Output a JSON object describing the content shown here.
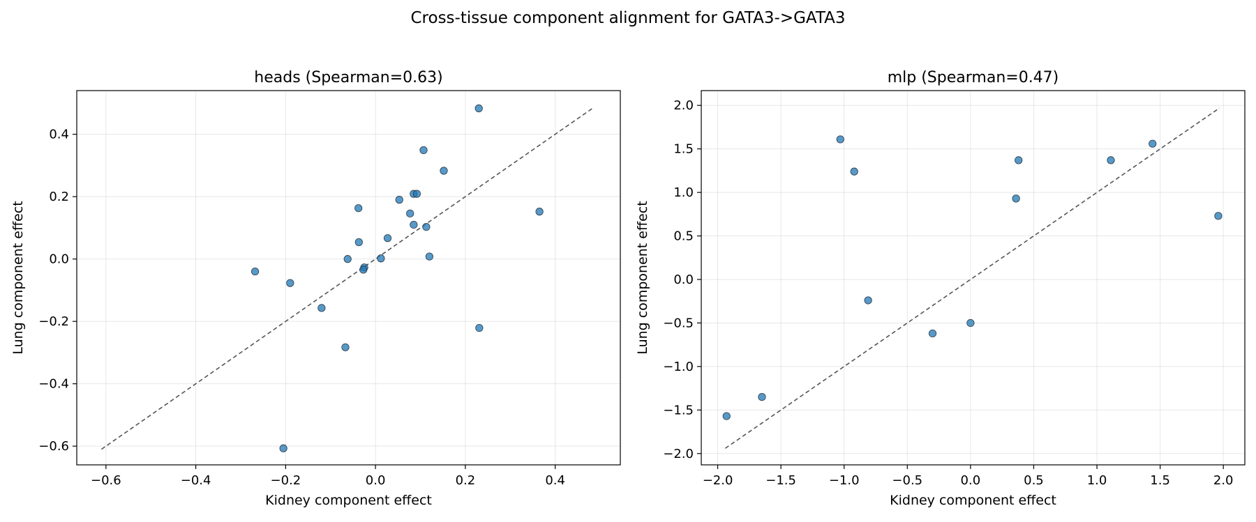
{
  "figure": {
    "suptitle": "Cross-tissue component alignment for GATA3->GATA3"
  },
  "colors": {
    "point_fill": "#1f77b4",
    "point_edge": "#2b3a4a",
    "diagonal": "#555555"
  },
  "chart_data": [
    {
      "type": "scatter",
      "title": "heads (Spearman=0.63)",
      "xlabel": "Kidney component effect",
      "ylabel": "Lung component effect",
      "xlim": [
        -0.665,
        0.545
      ],
      "ylim": [
        -0.66,
        0.54
      ],
      "xticks": [
        -0.6,
        -0.4,
        -0.2,
        0.0,
        0.2,
        0.4
      ],
      "xtick_labels": [
        "−0.6",
        "−0.4",
        "−0.2",
        "0.0",
        "0.2",
        "0.4"
      ],
      "yticks": [
        -0.6,
        -0.4,
        -0.2,
        0.0,
        0.2,
        0.4
      ],
      "ytick_labels": [
        "−0.6",
        "−0.4",
        "−0.2",
        "0.0",
        "0.2",
        "0.4"
      ],
      "grid": true,
      "diagonal": [
        -0.61,
        0.485
      ],
      "points": [
        {
          "x": 0.23,
          "y": 0.483
        },
        {
          "x": 0.107,
          "y": 0.349
        },
        {
          "x": 0.152,
          "y": 0.283
        },
        {
          "x": 0.085,
          "y": 0.209
        },
        {
          "x": 0.092,
          "y": 0.209
        },
        {
          "x": 0.053,
          "y": 0.19
        },
        {
          "x": 0.365,
          "y": 0.152
        },
        {
          "x": -0.038,
          "y": 0.163
        },
        {
          "x": 0.077,
          "y": 0.146
        },
        {
          "x": 0.085,
          "y": 0.11
        },
        {
          "x": 0.113,
          "y": 0.103
        },
        {
          "x": 0.027,
          "y": 0.067
        },
        {
          "x": -0.037,
          "y": 0.054
        },
        {
          "x": 0.12,
          "y": 0.008
        },
        {
          "x": -0.062,
          "y": 0.0
        },
        {
          "x": 0.012,
          "y": 0.002
        },
        {
          "x": -0.025,
          "y": -0.027
        },
        {
          "x": -0.027,
          "y": -0.034
        },
        {
          "x": -0.268,
          "y": -0.04
        },
        {
          "x": -0.19,
          "y": -0.077
        },
        {
          "x": -0.12,
          "y": -0.157
        },
        {
          "x": 0.231,
          "y": -0.221
        },
        {
          "x": -0.067,
          "y": -0.283
        },
        {
          "x": -0.205,
          "y": -0.607
        }
      ]
    },
    {
      "type": "scatter",
      "title": "mlp (Spearman=0.47)",
      "xlabel": "Kidney component effect",
      "ylabel": "Lung component effect",
      "xlim": [
        -2.13,
        2.17
      ],
      "ylim": [
        -2.13,
        2.17
      ],
      "xticks": [
        -2.0,
        -1.5,
        -1.0,
        -0.5,
        0.0,
        0.5,
        1.0,
        1.5,
        2.0
      ],
      "xtick_labels": [
        "−2.0",
        "−1.5",
        "−1.0",
        "−0.5",
        "0.0",
        "0.5",
        "1.0",
        "1.5",
        "2.0"
      ],
      "yticks": [
        -2.0,
        -1.5,
        -1.0,
        -0.5,
        0.0,
        0.5,
        1.0,
        1.5,
        2.0
      ],
      "ytick_labels": [
        "−2.0",
        "−1.5",
        "−1.0",
        "−0.5",
        "0.0",
        "0.5",
        "1.0",
        "1.5",
        "2.0"
      ],
      "grid": true,
      "diagonal": [
        -1.94,
        1.97
      ],
      "points": [
        {
          "x": -1.03,
          "y": 1.61
        },
        {
          "x": -0.92,
          "y": 1.24
        },
        {
          "x": 0.38,
          "y": 1.37
        },
        {
          "x": 1.11,
          "y": 1.37
        },
        {
          "x": 1.44,
          "y": 1.56
        },
        {
          "x": 0.36,
          "y": 0.93
        },
        {
          "x": 1.96,
          "y": 0.73
        },
        {
          "x": -0.81,
          "y": -0.24
        },
        {
          "x": -0.3,
          "y": -0.62
        },
        {
          "x": 0.0,
          "y": -0.5
        },
        {
          "x": -1.65,
          "y": -1.35
        },
        {
          "x": -1.93,
          "y": -1.57
        }
      ]
    }
  ]
}
